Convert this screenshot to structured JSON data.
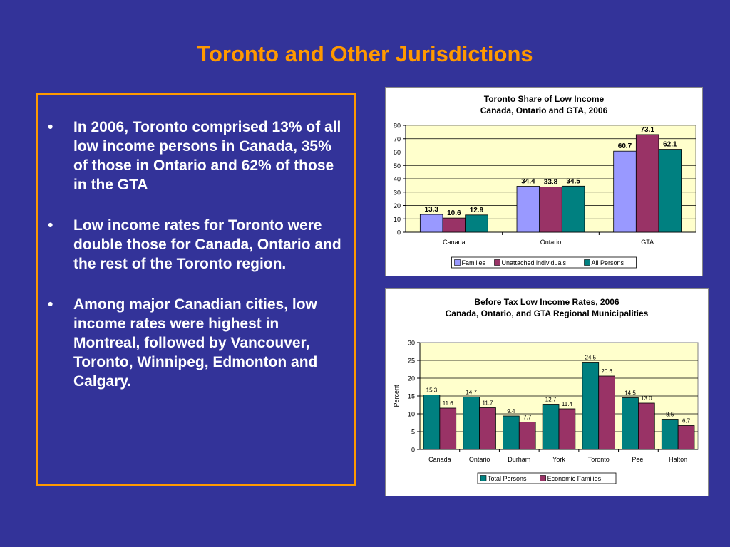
{
  "slide": {
    "title": "Toronto and Other Jurisdictions",
    "bullets": [
      "In 2006, Toronto comprised 13% of all low income persons in Canada, 35% of those in Ontario and 62% of those in the GTA",
      "Low income rates for Toronto were double those for Canada, Ontario and the rest of the Toronto region.",
      "Among major Canadian cities, low income rates were highest in Montreal, followed by Vancouver, Toronto, Winnipeg, Edmonton and Calgary."
    ]
  },
  "colors": {
    "background": "#333399",
    "title": "#ff9900",
    "plot_area": "#ffffcc",
    "families": "#9999ff",
    "unattached": "#993366",
    "persons": "#008080"
  },
  "chart_data": [
    {
      "type": "bar",
      "title": "Toronto Share of Low Income",
      "subtitle": "Canada, Ontario and GTA, 2006",
      "categories": [
        "Canada",
        "Ontario",
        "GTA"
      ],
      "series": [
        {
          "name": "Families",
          "color": "#9999ff",
          "values": [
            13.3,
            34.4,
            60.7
          ]
        },
        {
          "name": "Unattached individuals",
          "color": "#993366",
          "values": [
            10.6,
            33.8,
            73.1
          ]
        },
        {
          "name": "All Persons",
          "color": "#008080",
          "values": [
            12.9,
            34.5,
            62.1
          ]
        }
      ],
      "ylim": [
        0,
        80
      ],
      "yticks": [
        0,
        10,
        20,
        30,
        40,
        50,
        60,
        70,
        80
      ],
      "ylabel": "",
      "xlabel": "",
      "grid": true,
      "legend": "bottom"
    },
    {
      "type": "bar",
      "title": "Before Tax Low Income Rates, 2006",
      "subtitle": "Canada, Ontario, and GTA Regional Municipalities",
      "categories": [
        "Canada",
        "Ontario",
        "Durham",
        "York",
        "Toronto",
        "Peel",
        "Halton"
      ],
      "series": [
        {
          "name": "Total Persons",
          "color": "#008080",
          "values": [
            15.3,
            14.7,
            9.4,
            12.7,
            24.5,
            14.5,
            8.5
          ]
        },
        {
          "name": "Economic Families",
          "color": "#993366",
          "values": [
            11.6,
            11.7,
            7.7,
            11.4,
            20.6,
            13.0,
            6.7
          ]
        }
      ],
      "ylim": [
        0,
        30
      ],
      "yticks": [
        0,
        5,
        10,
        15,
        20,
        25,
        30
      ],
      "ylabel": "Percent",
      "xlabel": "",
      "grid": true,
      "legend": "bottom"
    }
  ]
}
